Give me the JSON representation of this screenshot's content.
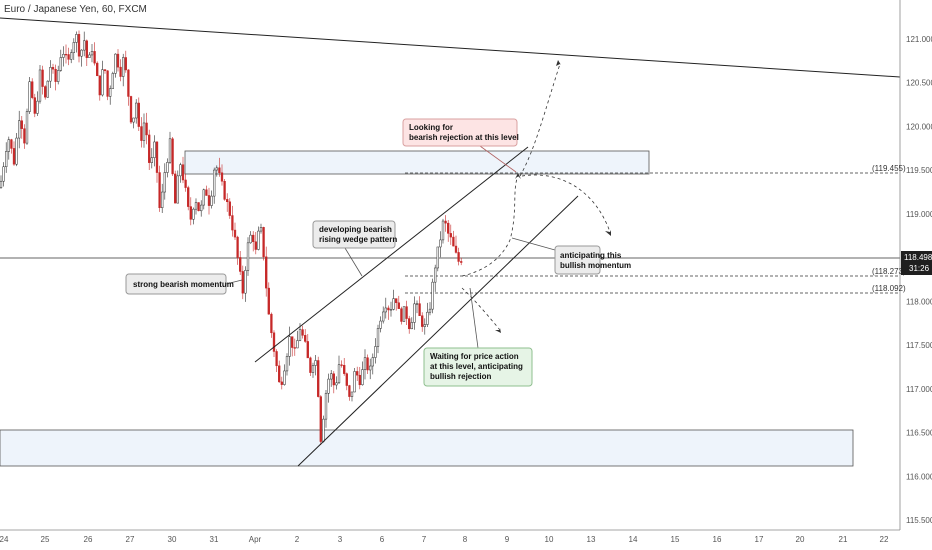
{
  "header": {
    "title": "Euro / Japanese Yen, 60, FXCM"
  },
  "chart_data": {
    "type": "candlestick",
    "title": "Euro / Japanese Yen, 60, FXCM",
    "ylim": [
      115.4,
      121.25
    ],
    "y_ticks": [
      121.0,
      120.5,
      120.0,
      119.5,
      119.0,
      118.5,
      118.0,
      117.5,
      117.0,
      116.5,
      116.0,
      115.5
    ],
    "x_ticks": [
      "24",
      "25",
      "26",
      "27",
      "30",
      "31",
      "Apr",
      "2",
      "3",
      "6",
      "7",
      "8",
      "9",
      "10",
      "13",
      "14",
      "15",
      "16",
      "17",
      "20",
      "21",
      "22"
    ],
    "current_price": {
      "value": "118.498",
      "countdown": "31:26"
    },
    "levels": [
      {
        "value": 119.455,
        "label": "(119.455)"
      },
      {
        "value": 118.273,
        "label": "(118.273)"
      },
      {
        "value": 118.092,
        "label": "(118.092)"
      }
    ],
    "zones": [
      {
        "name": "resistance-zone",
        "y_top": 119.72,
        "y_bottom": 119.45
      },
      {
        "name": "support-zone",
        "y_top": 116.55,
        "y_bottom": 116.12
      }
    ],
    "price_path": [
      [
        0,
        119.3
      ],
      [
        8,
        119.9
      ],
      [
        14,
        119.6
      ],
      [
        20,
        120.2
      ],
      [
        24,
        119.8
      ],
      [
        30,
        120.5
      ],
      [
        35,
        120.1
      ],
      [
        40,
        120.6
      ],
      [
        45,
        120.3
      ],
      [
        50,
        120.7
      ],
      [
        56,
        120.5
      ],
      [
        62,
        120.9
      ],
      [
        68,
        120.7
      ],
      [
        72,
        120.95
      ],
      [
        76,
        121.05
      ],
      [
        80,
        120.8
      ],
      [
        84,
        121.0
      ],
      [
        88,
        120.7
      ],
      [
        92,
        120.9
      ],
      [
        96,
        120.6
      ],
      [
        100,
        120.4
      ],
      [
        104,
        120.75
      ],
      [
        108,
        120.3
      ],
      [
        112,
        120.6
      ],
      [
        116,
        120.85
      ],
      [
        120,
        120.6
      ],
      [
        124,
        120.8
      ],
      [
        128,
        120.4
      ],
      [
        132,
        120.0
      ],
      [
        136,
        120.3
      ],
      [
        140,
        119.8
      ],
      [
        145,
        120.1
      ],
      [
        150,
        119.5
      ],
      [
        155,
        119.8
      ],
      [
        160,
        119.0
      ],
      [
        165,
        119.5
      ],
      [
        170,
        119.8
      ],
      [
        175,
        119.1
      ],
      [
        180,
        119.6
      ],
      [
        185,
        119.3
      ],
      [
        190,
        118.9
      ],
      [
        195,
        119.2
      ],
      [
        200,
        119.0
      ],
      [
        205,
        119.3
      ],
      [
        210,
        119.1
      ],
      [
        215,
        119.6
      ],
      [
        220,
        119.4
      ],
      [
        225,
        119.2
      ],
      [
        230,
        119.0
      ],
      [
        235,
        118.7
      ],
      [
        240,
        118.3
      ],
      [
        243,
        118.1
      ],
      [
        247,
        118.6
      ],
      [
        252,
        118.8
      ],
      [
        256,
        118.55
      ],
      [
        260,
        118.9
      ],
      [
        264,
        118.5
      ],
      [
        268,
        117.9
      ],
      [
        272,
        117.6
      ],
      [
        276,
        117.3
      ],
      [
        280,
        117.0
      ],
      [
        285,
        117.3
      ],
      [
        290,
        117.6
      ],
      [
        295,
        117.4
      ],
      [
        300,
        117.7
      ],
      [
        305,
        117.5
      ],
      [
        310,
        117.2
      ],
      [
        315,
        117.4
      ],
      [
        318,
        117.0
      ],
      [
        321,
        116.4
      ],
      [
        325,
        116.9
      ],
      [
        330,
        117.2
      ],
      [
        335,
        117.0
      ],
      [
        340,
        117.35
      ],
      [
        345,
        117.1
      ],
      [
        350,
        116.85
      ],
      [
        355,
        117.2
      ],
      [
        360,
        117.1
      ],
      [
        365,
        117.3
      ],
      [
        370,
        117.2
      ],
      [
        375,
        117.5
      ],
      [
        380,
        117.8
      ],
      [
        385,
        118.0
      ],
      [
        390,
        117.9
      ],
      [
        395,
        118.1
      ],
      [
        400,
        117.8
      ],
      [
        405,
        117.9
      ],
      [
        410,
        117.7
      ],
      [
        415,
        118.0
      ],
      [
        420,
        117.8
      ],
      [
        425,
        117.7
      ],
      [
        430,
        117.95
      ],
      [
        435,
        118.4
      ],
      [
        440,
        118.7
      ],
      [
        444,
        118.95
      ],
      [
        447,
        118.8
      ],
      [
        451,
        118.7
      ],
      [
        455,
        118.55
      ],
      [
        459,
        118.45
      ],
      [
        462,
        118.5
      ]
    ],
    "trendlines": [
      {
        "name": "long-term-resistance",
        "from": [
          0,
          121.18
        ],
        "to": [
          900,
          120.53
        ]
      },
      {
        "name": "wedge-upper",
        "from": [
          255,
          117.45
        ],
        "to": [
          528,
          119.75
        ]
      },
      {
        "name": "wedge-lower",
        "from": [
          298,
          116.12
        ],
        "to": [
          578,
          119.17
        ]
      }
    ],
    "annotations": [
      {
        "name": "note-looking-for",
        "lines": [
          "Looking for",
          "bearish rejection at this level"
        ],
        "fill": "#fde4e4",
        "stroke": "#d9a0a0"
      },
      {
        "name": "note-developing",
        "lines": [
          "developing bearish",
          "rising wedge pattern"
        ],
        "fill": "#ececec",
        "stroke": "#999999"
      },
      {
        "name": "note-strong",
        "lines": [
          "strong bearish momentum"
        ],
        "fill": "#ececec",
        "stroke": "#999999"
      },
      {
        "name": "note-anticipating",
        "lines": [
          "anticipating this",
          "bullish momentum"
        ],
        "fill": "#ececec",
        "stroke": "#999999"
      },
      {
        "name": "note-waiting",
        "lines": [
          "Waiting for price action",
          "at this level, anticipating",
          "bullish rejection"
        ],
        "fill": "#e6f4e6",
        "stroke": "#8fbf8f"
      }
    ],
    "colors": {
      "up": "#2b2b2b",
      "down": "#c62828",
      "zone_fill": "#eef4fb",
      "zone_stroke": "#555555",
      "price_tag": "#1f1f1f"
    }
  }
}
